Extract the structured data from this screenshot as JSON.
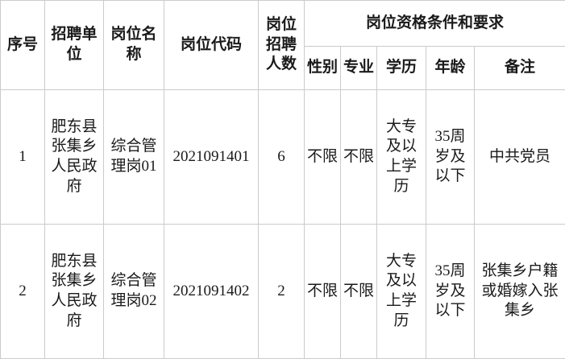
{
  "table": {
    "headers": {
      "serial": "序号",
      "unit": "招聘单位",
      "position_name": "岗位名称",
      "position_code": "岗位代码",
      "recruit_count": "岗位招聘人数",
      "qualification_group": "岗位资格条件和要求",
      "gender": "性别",
      "major": "专业",
      "education": "学历",
      "age": "年龄",
      "note": "备注"
    },
    "rows": [
      {
        "no": "1",
        "unit": "肥东县张集乡人民政府",
        "position": "综合管理岗01",
        "code": "2021091401",
        "count": "6",
        "gender": "不限",
        "major": "不限",
        "education": "大专及以上学历",
        "age": "35周岁及以下",
        "note": "中共党员"
      },
      {
        "no": "2",
        "unit": "肥东县张集乡人民政府",
        "position": "综合管理岗02",
        "code": "2021091402",
        "count": "2",
        "gender": "不限",
        "major": "不限",
        "education": "大专及以上学历",
        "age": "35周岁及以下",
        "note": "张集乡户籍或婚嫁入张集乡"
      }
    ],
    "colors": {
      "border": "#cbcbcb",
      "text": "#1a1a1a",
      "background": "#ffffff"
    }
  }
}
